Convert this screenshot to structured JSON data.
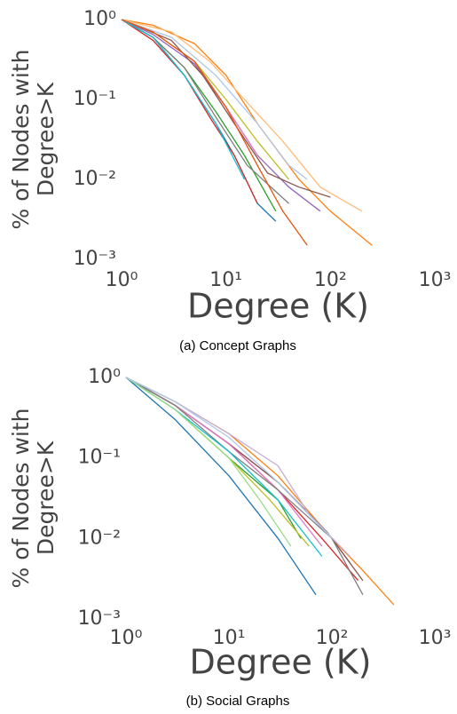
{
  "chart_data": [
    {
      "type": "line",
      "xscale": "log",
      "yscale": "log",
      "ylabel": [
        "% of Nodes with",
        "Degree>K"
      ],
      "xlabel": "Degree (K)",
      "caption": "(a) Concept Graphs",
      "xlim": [
        1,
        1000
      ],
      "ylim": [
        0.001,
        1
      ],
      "xticks": [
        {
          "value": 1,
          "label": "10⁰"
        },
        {
          "value": 10,
          "label": "10¹"
        },
        {
          "value": 100,
          "label": "10²"
        },
        {
          "value": 1000,
          "label": "10³"
        }
      ],
      "yticks": [
        {
          "value": 0.001,
          "label": "10⁻³"
        },
        {
          "value": 0.01,
          "label": "10⁻²"
        },
        {
          "value": 0.1,
          "label": "10⁻¹"
        },
        {
          "value": 1,
          "label": "10⁰"
        }
      ],
      "series": [
        {
          "color": "#1f77b4",
          "x": [
            1,
            2,
            4,
            8,
            12,
            20,
            30
          ],
          "values": [
            1,
            0.6,
            0.2,
            0.05,
            0.02,
            0.005,
            0.003
          ]
        },
        {
          "color": "#ff7f0e",
          "x": [
            1,
            2,
            5,
            10,
            20,
            50,
            100,
            250
          ],
          "values": [
            1,
            0.85,
            0.5,
            0.2,
            0.05,
            0.01,
            0.004,
            0.0015
          ]
        },
        {
          "color": "#2ca02c",
          "x": [
            1,
            2,
            4,
            8,
            15,
            30
          ],
          "values": [
            1,
            0.6,
            0.25,
            0.07,
            0.02,
            0.004
          ]
        },
        {
          "color": "#d62728",
          "x": [
            1,
            2,
            4,
            7,
            12,
            20
          ],
          "values": [
            1,
            0.55,
            0.2,
            0.06,
            0.02,
            0.005
          ]
        },
        {
          "color": "#9467bd",
          "x": [
            1,
            2,
            5,
            10,
            20,
            40,
            80
          ],
          "values": [
            1,
            0.65,
            0.28,
            0.08,
            0.02,
            0.008,
            0.004
          ]
        },
        {
          "color": "#8c564b",
          "x": [
            1,
            3,
            6,
            12,
            25,
            50,
            100
          ],
          "values": [
            1,
            0.55,
            0.2,
            0.05,
            0.012,
            0.008,
            0.006
          ]
        },
        {
          "color": "#e377c2",
          "x": [
            1,
            2,
            5,
            10,
            20
          ],
          "values": [
            1,
            0.7,
            0.3,
            0.08,
            0.02
          ]
        },
        {
          "color": "#7f7f7f",
          "x": [
            1,
            2,
            4,
            8,
            16,
            40
          ],
          "values": [
            1,
            0.6,
            0.25,
            0.06,
            0.015,
            0.005
          ]
        },
        {
          "color": "#bcbd22",
          "x": [
            1,
            2,
            5,
            10,
            20,
            40
          ],
          "values": [
            1,
            0.7,
            0.3,
            0.1,
            0.03,
            0.01
          ]
        },
        {
          "color": "#17becf",
          "x": [
            1,
            2,
            4,
            8,
            15
          ],
          "values": [
            1,
            0.6,
            0.2,
            0.05,
            0.01
          ]
        },
        {
          "color": "#ffbb78",
          "x": [
            1,
            3,
            7,
            15,
            35,
            80,
            200
          ],
          "values": [
            1,
            0.7,
            0.3,
            0.1,
            0.03,
            0.008,
            0.004
          ]
        },
        {
          "color": "#aec7e8",
          "x": [
            1,
            3,
            8,
            20,
            40,
            60
          ],
          "values": [
            1,
            0.6,
            0.2,
            0.05,
            0.015,
            0.01
          ]
        },
        {
          "color": "#e6550d",
          "x": [
            1,
            2,
            5,
            10,
            20,
            35,
            60
          ],
          "values": [
            1,
            0.7,
            0.3,
            0.08,
            0.015,
            0.004,
            0.0015
          ]
        }
      ]
    },
    {
      "type": "line",
      "xscale": "log",
      "yscale": "log",
      "ylabel": [
        "% of Nodes with",
        "Degree>K"
      ],
      "xlabel": "Degree (K)",
      "caption": "(b) Social Graphs",
      "xlim": [
        1,
        1000
      ],
      "ylim": [
        0.001,
        1
      ],
      "xticks": [
        {
          "value": 1,
          "label": "10⁰"
        },
        {
          "value": 10,
          "label": "10¹"
        },
        {
          "value": 100,
          "label": "10²"
        },
        {
          "value": 1000,
          "label": "10³"
        }
      ],
      "yticks": [
        {
          "value": 0.001,
          "label": "10⁻³"
        },
        {
          "value": 0.01,
          "label": "10⁻²"
        },
        {
          "value": 0.1,
          "label": "10⁻¹"
        },
        {
          "value": 1,
          "label": "10⁰"
        }
      ],
      "series": [
        {
          "color": "#1f77b4",
          "x": [
            1,
            3,
            10,
            30,
            70
          ],
          "values": [
            1,
            0.3,
            0.06,
            0.01,
            0.002
          ]
        },
        {
          "color": "#ff7f0e",
          "x": [
            1,
            3,
            10,
            30,
            100,
            200,
            400
          ],
          "values": [
            1,
            0.5,
            0.2,
            0.06,
            0.01,
            0.004,
            0.0015
          ]
        },
        {
          "color": "#2ca02c",
          "x": [
            1,
            3,
            10,
            30,
            50
          ],
          "values": [
            1,
            0.4,
            0.1,
            0.03,
            0.01
          ]
        },
        {
          "color": "#d62728",
          "x": [
            1,
            3,
            10,
            30,
            80,
            180
          ],
          "values": [
            1,
            0.45,
            0.15,
            0.04,
            0.01,
            0.003
          ]
        },
        {
          "color": "#9467bd",
          "x": [
            1,
            3,
            10,
            30,
            100,
            150
          ],
          "values": [
            1,
            0.45,
            0.15,
            0.05,
            0.01,
            0.005
          ]
        },
        {
          "color": "#8c564b",
          "x": [
            1,
            3,
            10,
            30,
            90,
            200
          ],
          "values": [
            1,
            0.45,
            0.15,
            0.05,
            0.012,
            0.003
          ]
        },
        {
          "color": "#e377c2",
          "x": [
            1,
            3,
            10,
            30,
            80
          ],
          "values": [
            1,
            0.45,
            0.15,
            0.04,
            0.008
          ]
        },
        {
          "color": "#7f7f7f",
          "x": [
            1,
            3,
            10,
            30,
            100,
            200
          ],
          "values": [
            1,
            0.45,
            0.12,
            0.04,
            0.01,
            0.002
          ]
        },
        {
          "color": "#bcbd22",
          "x": [
            1,
            3,
            10,
            25,
            60
          ],
          "values": [
            1,
            0.4,
            0.1,
            0.03,
            0.008
          ]
        },
        {
          "color": "#17becf",
          "x": [
            1,
            3,
            10,
            30,
            80
          ],
          "values": [
            1,
            0.4,
            0.12,
            0.03,
            0.006
          ]
        },
        {
          "color": "#c5b0d5",
          "x": [
            1,
            3,
            10,
            30,
            60,
            150
          ],
          "values": [
            1,
            0.5,
            0.2,
            0.08,
            0.02,
            0.006
          ]
        },
        {
          "color": "#98df8a",
          "x": [
            1,
            3,
            10,
            20,
            40
          ],
          "values": [
            1,
            0.4,
            0.1,
            0.03,
            0.008
          ]
        },
        {
          "color": "#aec7e8",
          "x": [
            1,
            3,
            10,
            30,
            100
          ],
          "values": [
            1,
            0.5,
            0.18,
            0.05,
            0.01
          ]
        }
      ]
    }
  ]
}
